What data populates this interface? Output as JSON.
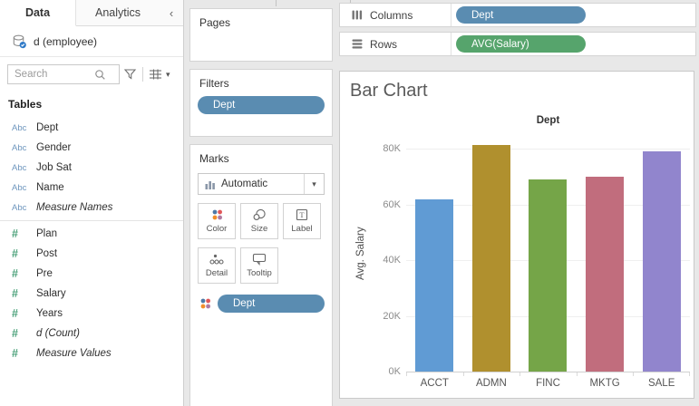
{
  "icons": {
    "collapse": "‹",
    "caret_down": "▾"
  },
  "sidebar": {
    "tabs": [
      {
        "label": "Data"
      },
      {
        "label": "Analytics"
      }
    ],
    "datasource": "d (employee)",
    "search_placeholder": "Search",
    "tables_header": "Tables",
    "field_icons": {
      "string": "Abc",
      "number": "#"
    },
    "fields": [
      {
        "name": "Dept",
        "type": "string",
        "italic": false
      },
      {
        "name": "Gender",
        "type": "string",
        "italic": false
      },
      {
        "name": "Job Sat",
        "type": "string",
        "italic": false
      },
      {
        "name": "Name",
        "type": "string",
        "italic": false
      },
      {
        "name": "Measure Names",
        "type": "string",
        "italic": true
      },
      {
        "name": "Plan",
        "type": "number",
        "italic": false
      },
      {
        "name": "Post",
        "type": "number",
        "italic": false
      },
      {
        "name": "Pre",
        "type": "number",
        "italic": false
      },
      {
        "name": "Salary",
        "type": "number",
        "italic": false
      },
      {
        "name": "Years",
        "type": "number",
        "italic": false
      },
      {
        "name": "d (Count)",
        "type": "number",
        "italic": true
      },
      {
        "name": "Measure Values",
        "type": "number",
        "italic": true
      }
    ]
  },
  "cards": {
    "pages": {
      "title": "Pages"
    },
    "filters": {
      "title": "Filters",
      "pill": "Dept"
    },
    "marks": {
      "title": "Marks",
      "mark_type": "Automatic",
      "buttons_row1": [
        "Color",
        "Size",
        "Label"
      ],
      "buttons_row2": [
        "Detail",
        "Tooltip"
      ],
      "color_pill": "Dept"
    }
  },
  "shelves": {
    "columns": {
      "label": "Columns",
      "pill": "Dept"
    },
    "rows": {
      "label": "Rows",
      "pill": "AVG(Salary)"
    }
  },
  "colors": {
    "pill_blue": "#5a8cb1",
    "pill_green": "#56a46c",
    "dot_blue": "#4e79a7",
    "dot_red": "#e15759",
    "dot_orange": "#f28e2b",
    "dot_purple": "#b07aa1"
  },
  "chart_data": {
    "type": "bar",
    "title": "Bar Chart",
    "column_header": "Dept",
    "categories": [
      "ACCT",
      "ADMN",
      "FINC",
      "MKTG",
      "SALE"
    ],
    "values": [
      62000,
      81500,
      69000,
      70000,
      79000
    ],
    "bar_colors": [
      "#609bd4",
      "#b0902e",
      "#75a548",
      "#c16d7d",
      "#9185cd"
    ],
    "xlabel": "Dept",
    "ylabel": "Avg. Salary",
    "yticks": [
      0,
      20000,
      40000,
      60000,
      80000
    ],
    "ytick_labels": [
      "0K",
      "20K",
      "40K",
      "60K",
      "80K"
    ],
    "ylim": [
      0,
      85000
    ],
    "grid": true,
    "legend": "none"
  }
}
